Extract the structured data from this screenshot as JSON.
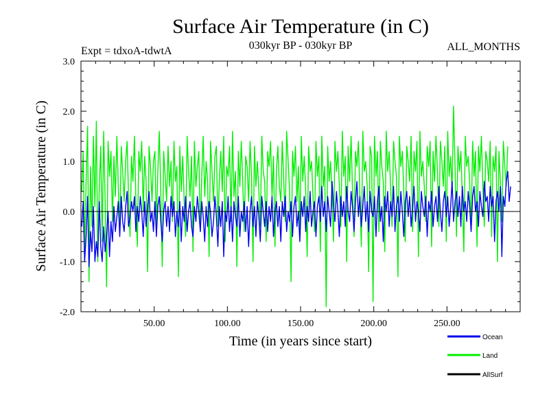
{
  "chart_data": {
    "type": "line",
    "title": "Surface Air Temperature (in C)",
    "subtitle_left": "Expt = tdxoA-tdwtA",
    "subtitle_center": "030kyr BP - 030kyr BP",
    "subtitle_right": "ALL_MONTHS",
    "xlabel": "Time (in years since start)",
    "ylabel": "Surface Air Temperature (in C)",
    "xlim": [
      0,
      300
    ],
    "ylim": [
      -2.0,
      3.0
    ],
    "x_ticks": [
      50,
      100,
      150,
      200,
      250
    ],
    "x_tick_labels": [
      "50.00",
      "100.00",
      "150.00",
      "200.00",
      "250.00"
    ],
    "y_ticks": [
      -2,
      -1,
      0,
      1,
      2,
      3
    ],
    "y_tick_labels": [
      "-2.0",
      "-1.0",
      "0.0",
      "1.0",
      "2.0",
      "3.0"
    ],
    "legend_position": "bottom-right",
    "zero_line": true,
    "series": [
      {
        "name": "Land",
        "color": "#00ee00",
        "x_start": 0.5,
        "x_step": 1,
        "values": [
          0.4,
          1.2,
          -0.8,
          0.6,
          1.7,
          -1.4,
          0.9,
          -0.3,
          1.5,
          0.1,
          1.8,
          -1.0,
          0.5,
          1.3,
          -0.6,
          1.6,
          0.2,
          -1.5,
          1.4,
          0.7,
          1.2,
          -0.2,
          1.1,
          0.3,
          1.5,
          0.5,
          -0.4,
          1.3,
          0.8,
          0.2,
          1.0,
          1.4,
          0.3,
          -0.5,
          1.1,
          0.6,
          1.5,
          0.2,
          -0.7,
          1.2,
          0.8,
          1.4,
          0.0,
          1.1,
          0.6,
          -1.2,
          1.3,
          0.9,
          0.2,
          1.0,
          1.2,
          -0.3,
          0.8,
          1.6,
          0.4,
          -1.1,
          1.2,
          0.7,
          0.2,
          1.3,
          0.5,
          1.0,
          -0.2,
          1.4,
          0.6,
          0.9,
          -1.3,
          1.3,
          0.4,
          1.1,
          0.2,
          -0.5,
          1.5,
          0.8,
          0.3,
          1.1,
          -0.8,
          1.4,
          0.5,
          0.9,
          1.2,
          -0.4,
          0.7,
          1.5,
          0.3,
          1.0,
          0.6,
          -0.9,
          1.4,
          0.8,
          0.2,
          1.1,
          1.3,
          -0.3,
          0.6,
          1.2,
          0.4,
          1.5,
          -0.6,
          0.9,
          0.7,
          1.3,
          -0.2,
          1.6,
          0.3,
          0.8,
          -1.1,
          1.2,
          0.5,
          1.4,
          0.6,
          -0.4,
          1.1,
          0.9,
          0.2,
          1.4,
          0.7,
          -1.0,
          1.3,
          0.5,
          1.0,
          0.4,
          -0.3,
          1.5,
          0.8,
          0.6,
          -0.6,
          1.2,
          0.9,
          1.4,
          0.3,
          1.1,
          -0.7,
          0.8,
          1.3,
          0.5,
          0.2,
          1.4,
          0.6,
          -0.2,
          1.6,
          1.0,
          0.4,
          -1.4,
          1.2,
          0.7,
          1.3,
          0.2,
          0.9,
          -0.5,
          1.5,
          0.6,
          1.1,
          0.4,
          -0.9,
          1.3,
          0.8,
          1.0,
          0.3,
          -0.4,
          1.4,
          0.7,
          1.1,
          -0.8,
          1.5,
          0.5,
          0.9,
          -1.9,
          1.3,
          0.6,
          1.0,
          0.3,
          -0.6,
          1.4,
          0.8,
          1.2,
          0.5,
          -0.3,
          1.6,
          0.7,
          1.1,
          -1.0,
          1.3,
          0.6,
          1.5,
          0.4,
          -0.5,
          1.2,
          0.9,
          1.4,
          0.3,
          -0.7,
          1.6,
          0.8,
          1.0,
          0.5,
          -1.2,
          1.3,
          1.1,
          -1.8,
          1.5,
          0.7,
          1.2,
          -0.4,
          1.4,
          0.9,
          0.6,
          -0.8,
          1.6,
          0.8,
          1.2,
          0.5,
          -0.3,
          1.4,
          1.0,
          0.7,
          -1.3,
          1.5,
          0.9,
          1.2,
          0.4,
          -0.6,
          1.3,
          1.0,
          0.6,
          1.5,
          -0.4,
          1.2,
          0.8,
          1.4,
          -0.9,
          1.6,
          0.7,
          1.0,
          0.5,
          -0.2,
          1.3,
          0.9,
          1.4,
          -0.7,
          1.2,
          0.6,
          1.5,
          0.8,
          -0.3,
          1.4,
          1.0,
          0.5,
          1.3,
          -0.6,
          1.6,
          0.7,
          1.1,
          0.4,
          2.1,
          0.9,
          -0.5,
          1.3,
          0.8,
          1.2,
          0.3,
          -0.8,
          1.5,
          0.9,
          1.1,
          0.6,
          -0.4,
          1.4,
          0.7,
          1.2,
          -0.7,
          1.3,
          0.8,
          1.5,
          0.5,
          -0.3,
          1.2,
          1.0,
          0.6,
          1.4,
          -0.5,
          1.1,
          0.8,
          1.3,
          -1.0,
          1.2,
          0.6,
          -0.2,
          1.4,
          0.9,
          0.5,
          1.3
        ]
      },
      {
        "name": "Ocean",
        "color": "#0000ee",
        "x_start": 0.5,
        "x_step": 1,
        "values": [
          -0.3,
          0.2,
          -1.0,
          -0.5,
          0.3,
          -1.1,
          -0.4,
          -0.8,
          0.1,
          -1.0,
          -0.6,
          -0.9,
          0.2,
          -0.7,
          -1.0,
          -0.3,
          -0.8,
          -0.5,
          0.0,
          -0.9,
          -0.2,
          -0.6,
          0.1,
          -0.4,
          -0.1,
          0.2,
          -0.5,
          0.3,
          -0.2,
          -0.4,
          0.1,
          0.4,
          -0.3,
          -0.1,
          0.2,
          0.0,
          0.3,
          -0.4,
          0.1,
          -0.2,
          0.3,
          0.0,
          -0.5,
          0.2,
          -0.3,
          0.1,
          0.4,
          -0.2,
          0.0,
          -0.4,
          0.2,
          -0.5,
          0.1,
          0.3,
          -0.2,
          -0.6,
          0.0,
          0.2,
          -0.3,
          0.1,
          -0.4,
          0.3,
          -0.1,
          0.2,
          -0.5,
          0.0,
          -0.3,
          0.2,
          -0.6,
          0.1,
          -0.2,
          0.3,
          -0.4,
          0.0,
          0.2,
          -0.3,
          -0.5,
          0.1,
          -0.2,
          0.3,
          0.0,
          -0.4,
          0.2,
          -0.1,
          -0.6,
          0.1,
          -0.3,
          0.2,
          0.0,
          -0.5,
          -0.2,
          0.3,
          -0.1,
          -0.7,
          0.1,
          -0.3,
          0.2,
          -0.9,
          0.0,
          -0.2,
          0.3,
          -0.4,
          0.1,
          -0.6,
          0.2,
          -0.1,
          -0.3,
          0.3,
          -0.5,
          0.0,
          -0.2,
          0.2,
          -0.4,
          0.1,
          -0.7,
          0.0,
          0.3,
          -0.3,
          0.1,
          -0.5,
          0.2,
          -0.1,
          -0.6,
          0.3,
          0.0,
          -0.3,
          0.2,
          -0.4,
          0.1,
          -0.2,
          0.3,
          -0.5,
          0.0,
          0.2,
          -0.3,
          0.1,
          -0.6,
          0.2,
          -0.1,
          0.3,
          -0.4,
          0.0,
          -0.2,
          0.2,
          -0.5,
          0.1,
          0.3,
          -0.3,
          0.0,
          -0.6,
          0.2,
          -0.1,
          0.3,
          -0.4,
          0.1,
          -0.2,
          0.4,
          -0.3,
          0.0,
          0.2,
          -0.5,
          0.1,
          0.3,
          -0.2,
          0.5,
          -0.1,
          0.2,
          -0.4,
          0.3,
          0.0,
          -0.3,
          0.6,
          0.1,
          -0.2,
          0.4,
          0.0,
          -0.5,
          0.3,
          -0.1,
          0.2,
          -0.3,
          0.5,
          0.0,
          -0.2,
          0.4,
          0.1,
          -0.4,
          0.2,
          0.6,
          -0.1,
          0.3,
          -0.3,
          0.1,
          0.5,
          -0.2,
          0.2,
          -0.4,
          0.4,
          0.0,
          -0.1,
          0.3,
          -0.5,
          0.2,
          0.5,
          -0.2,
          0.1,
          -0.6,
          0.3,
          0.0,
          0.4,
          -0.3,
          0.2,
          -0.1,
          0.5,
          -0.4,
          0.1,
          0.3,
          -0.2,
          0.4,
          0.0,
          -0.5,
          0.2,
          0.4,
          -0.1,
          0.3,
          -0.3,
          0.1,
          0.5,
          -0.2,
          0.2,
          0.0,
          -0.4,
          0.4,
          0.1,
          -0.1,
          0.3,
          -0.5,
          0.2,
          0.0,
          0.4,
          -0.3,
          0.1,
          0.3,
          -0.2,
          0.5,
          0.0,
          -0.4,
          0.2,
          0.4,
          -0.1,
          0.3,
          -0.3,
          0.1,
          0.6,
          -0.2,
          0.2,
          0.4,
          -0.1,
          0.3,
          -0.3,
          0.5,
          0.0,
          0.2,
          -0.2,
          0.4,
          0.1,
          -0.4,
          0.3,
          0.5,
          0.0,
          0.2,
          -0.3,
          0.4,
          0.1,
          -0.1,
          0.6,
          0.2,
          0.3,
          -0.2,
          0.5,
          0.1,
          0.3,
          -0.6,
          0.2,
          0.4,
          0.0,
          0.5,
          -0.9,
          0.3,
          0.1,
          0.6,
          0.8,
          0.2,
          0.5
        ]
      },
      {
        "name": "AllSurf",
        "color": "#000000",
        "values": []
      }
    ]
  }
}
